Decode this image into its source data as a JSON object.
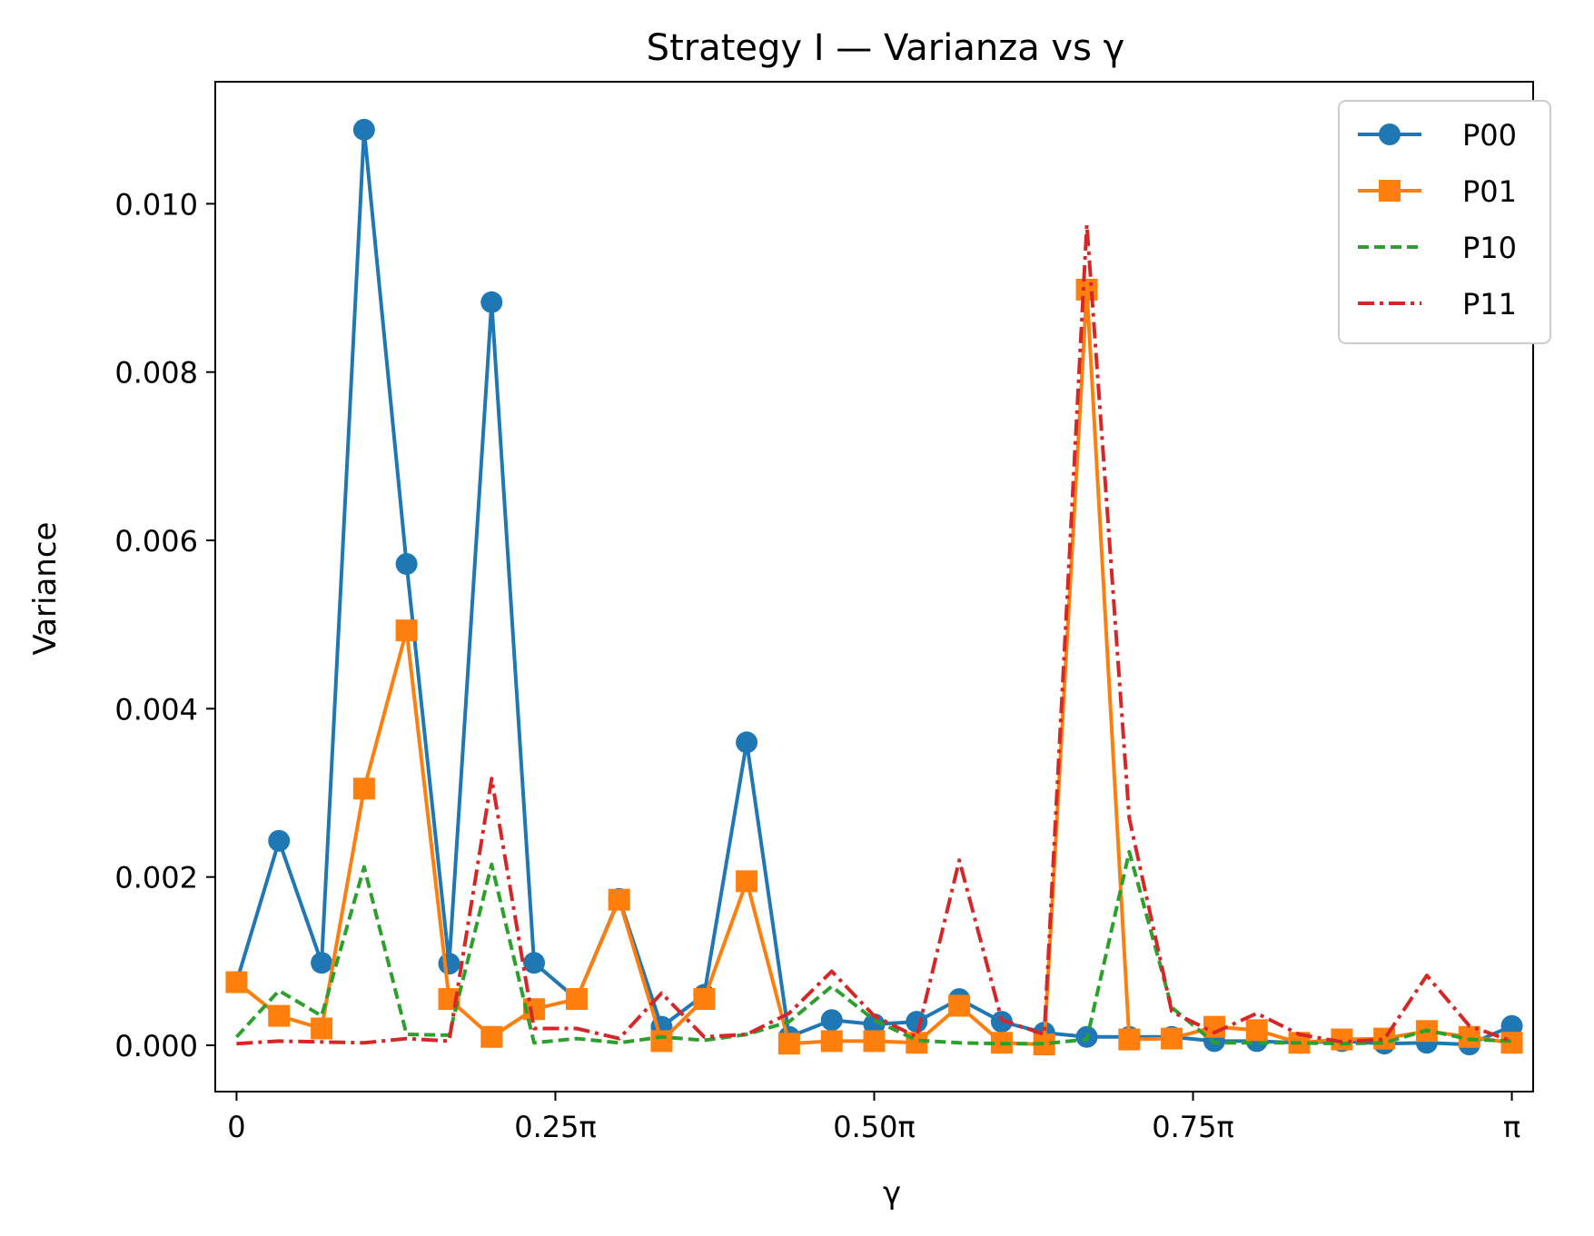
{
  "chart_data": {
    "type": "line",
    "title": "Strategy I — Varianza vs γ",
    "xlabel": "γ",
    "ylabel": "Variance",
    "x_unit": "π",
    "xlim": [
      -0.0167,
      1.0167
    ],
    "ylim": [
      -0.00055,
      0.01145
    ],
    "xticks": [
      {
        "value": 0,
        "label": "0"
      },
      {
        "value": 0.25,
        "label": "0.25π"
      },
      {
        "value": 0.5,
        "label": "0.50π"
      },
      {
        "value": 0.75,
        "label": "0.75π"
      },
      {
        "value": 1.0,
        "label": "π"
      }
    ],
    "yticks": [
      {
        "value": 0,
        "label": "0.000"
      },
      {
        "value": 0.002,
        "label": "0.002"
      },
      {
        "value": 0.004,
        "label": "0.004"
      },
      {
        "value": 0.006,
        "label": "0.006"
      },
      {
        "value": 0.008,
        "label": "0.008"
      },
      {
        "value": 0.01,
        "label": "0.010"
      }
    ],
    "grid": false,
    "legend_position": "top-right",
    "x": [
      0,
      0.0333,
      0.0667,
      0.1,
      0.1333,
      0.1667,
      0.2,
      0.2333,
      0.2667,
      0.3,
      0.3333,
      0.3667,
      0.4,
      0.4333,
      0.4667,
      0.5,
      0.5333,
      0.5667,
      0.6,
      0.6333,
      0.6667,
      0.7,
      0.7333,
      0.7667,
      0.8,
      0.8333,
      0.8667,
      0.9,
      0.9333,
      0.9667,
      1.0
    ],
    "series": [
      {
        "name": "P00",
        "color": "#1f77b4",
        "line_style": "solid",
        "marker": "circle",
        "values": [
          0.00075,
          0.00243,
          0.00098,
          0.01088,
          0.00572,
          0.00097,
          0.00883,
          0.00098,
          0.00055,
          0.00174,
          0.00022,
          0.0006,
          0.0036,
          0.0001,
          0.0003,
          0.00025,
          0.00028,
          0.00055,
          0.00028,
          0.00015,
          0.0001,
          0.0001,
          0.0001,
          5e-05,
          5e-05,
          3e-05,
          5e-05,
          2e-05,
          3e-05,
          1e-05,
          0.00023
        ]
      },
      {
        "name": "P01",
        "color": "#ff7f0e",
        "line_style": "solid",
        "marker": "square",
        "values": [
          0.00075,
          0.00035,
          0.0002,
          0.00305,
          0.00493,
          0.00055,
          0.0001,
          0.00043,
          0.00055,
          0.00173,
          5e-05,
          0.00055,
          0.00195,
          2e-05,
          5e-05,
          5e-05,
          3e-05,
          0.00047,
          3e-05,
          1e-05,
          0.00898,
          7e-05,
          8e-05,
          0.00022,
          0.00018,
          3e-05,
          7e-05,
          8e-05,
          0.00017,
          0.0001,
          3e-05
        ]
      },
      {
        "name": "P10",
        "color": "#2ca02c",
        "line_style": "dashed",
        "marker": "none",
        "values": [
          0.0001,
          0.00065,
          0.00035,
          0.00212,
          0.00013,
          0.00012,
          0.00215,
          3e-05,
          8e-05,
          3e-05,
          0.0001,
          6e-05,
          0.00013,
          0.00028,
          0.0007,
          0.0003,
          6e-05,
          3e-05,
          2e-05,
          2e-05,
          7e-05,
          0.0023,
          0.00045,
          3e-05,
          3e-05,
          3e-05,
          2e-05,
          3e-05,
          0.00018,
          7e-05,
          5e-05
        ]
      },
      {
        "name": "P11",
        "color": "#d62728",
        "line_style": "dashdot",
        "marker": "none",
        "values": [
          2e-05,
          5e-05,
          4e-05,
          3e-05,
          8e-05,
          5e-05,
          0.00317,
          0.0002,
          0.0002,
          8e-05,
          0.00062,
          0.0001,
          0.00013,
          0.00038,
          0.00088,
          0.00035,
          0.0001,
          0.0022,
          0.0003,
          0.00013,
          0.00975,
          0.0027,
          0.0004,
          0.00015,
          0.00038,
          0.00013,
          4e-05,
          7e-05,
          0.00083,
          0.00023,
          5e-05
        ]
      }
    ]
  }
}
